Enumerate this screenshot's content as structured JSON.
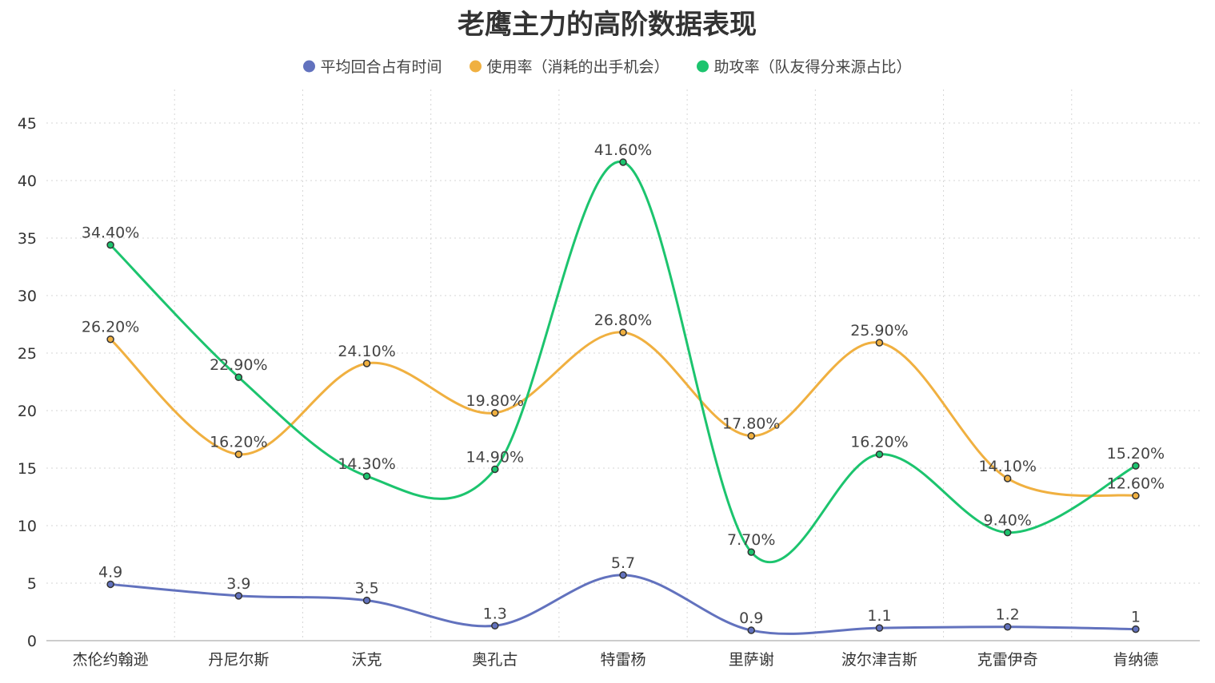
{
  "chart_data": {
    "type": "line",
    "title": "老鹰主力的高阶数据表现",
    "categories": [
      "杰伦约翰逊",
      "丹尼尔斯",
      "沃克",
      "奥孔古",
      "特雷杨",
      "里萨谢",
      "波尔津吉斯",
      "克雷伊奇",
      "肯纳德"
    ],
    "ylim": [
      0,
      45
    ],
    "yticks": [
      0,
      5,
      10,
      15,
      20,
      25,
      30,
      35,
      40,
      45
    ],
    "grid": true,
    "legend_position": "top-center",
    "smooth": true,
    "series": [
      {
        "name": "平均回合占有时间",
        "color": "#6272be",
        "values": [
          4.9,
          3.9,
          3.5,
          1.3,
          5.7,
          0.9,
          1.1,
          1.2,
          1
        ],
        "labels": [
          "4.9",
          "3.9",
          "3.5",
          "1.3",
          "5.7",
          "0.9",
          "1.1",
          "1.2",
          "1"
        ]
      },
      {
        "name": "使用率（消耗的出手机会）",
        "color": "#f0b040",
        "values": [
          26.2,
          16.2,
          24.1,
          19.8,
          26.8,
          17.8,
          25.9,
          14.1,
          12.6
        ],
        "labels": [
          "26.20%",
          "16.20%",
          "24.10%",
          "19.80%",
          "26.80%",
          "17.80%",
          "25.90%",
          "14.10%",
          "12.60%"
        ]
      },
      {
        "name": "助攻率（队友得分来源占比）",
        "color": "#1cc46e",
        "values": [
          34.4,
          22.9,
          14.3,
          14.9,
          41.6,
          7.7,
          16.2,
          9.4,
          15.2
        ],
        "labels": [
          "34.40%",
          "22.90%",
          "14.30%",
          "14.90%",
          "41.60%",
          "7.70%",
          "16.20%",
          "9.40%",
          "15.20%"
        ]
      }
    ]
  }
}
